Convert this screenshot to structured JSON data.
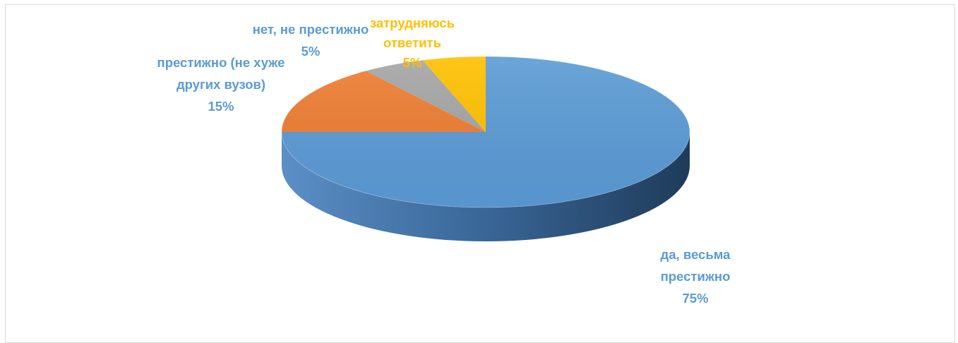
{
  "chart_data": {
    "type": "pie",
    "title": "",
    "style": "3d",
    "slices": [
      {
        "label_lines": [
          "да, весьма",
          "престижно"
        ],
        "percent_label": "75%",
        "value": 75,
        "color": "#5b9bd5",
        "side_color": "#2f5d8a",
        "label_color": "#5b9bd5"
      },
      {
        "label_lines": [
          "престижно (не хуже",
          "других вузов)"
        ],
        "percent_label": "15%",
        "value": 15,
        "color": "#ed7d31",
        "side_color": "#b35a1f",
        "label_color": "#5b9bd5"
      },
      {
        "label_lines": [
          "нет, не престижно"
        ],
        "percent_label": "5%",
        "value": 5,
        "color": "#a5a5a5",
        "side_color": "#707070",
        "label_color": "#5b9bd5"
      },
      {
        "label_lines": [
          "затрудняюсь",
          "ответить"
        ],
        "percent_label": "5%",
        "value": 5,
        "color": "#ffc000",
        "side_color": "#c09000",
        "label_color": "#ffc000"
      }
    ]
  }
}
